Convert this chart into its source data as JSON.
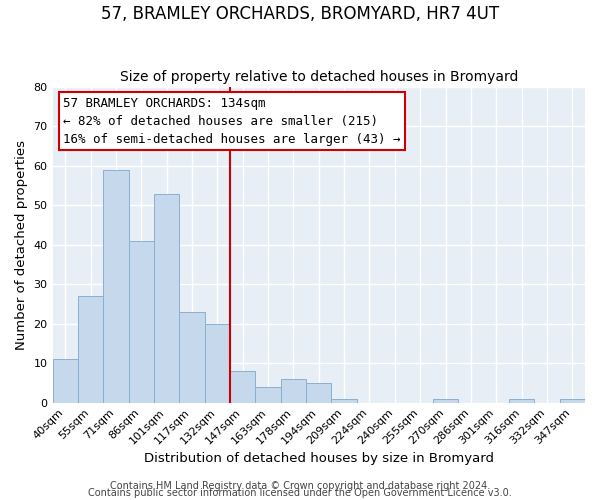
{
  "title": "57, BRAMLEY ORCHARDS, BROMYARD, HR7 4UT",
  "subtitle": "Size of property relative to detached houses in Bromyard",
  "xlabel": "Distribution of detached houses by size in Bromyard",
  "ylabel": "Number of detached properties",
  "bar_labels": [
    "40sqm",
    "55sqm",
    "71sqm",
    "86sqm",
    "101sqm",
    "117sqm",
    "132sqm",
    "147sqm",
    "163sqm",
    "178sqm",
    "194sqm",
    "209sqm",
    "224sqm",
    "240sqm",
    "255sqm",
    "270sqm",
    "286sqm",
    "301sqm",
    "316sqm",
    "332sqm",
    "347sqm"
  ],
  "bar_values": [
    11,
    27,
    59,
    41,
    53,
    23,
    20,
    8,
    4,
    6,
    5,
    1,
    0,
    0,
    0,
    1,
    0,
    0,
    1,
    0,
    1
  ],
  "bar_color": "#c5d8ec",
  "bar_edge_color": "#8ab0d0",
  "highlight_index": 6,
  "highlight_edge_color": "#cc0000",
  "ylim": [
    0,
    80
  ],
  "yticks": [
    0,
    10,
    20,
    30,
    40,
    50,
    60,
    70,
    80
  ],
  "annotation_line1": "57 BRAMLEY ORCHARDS: 134sqm",
  "annotation_line2": "← 82% of detached houses are smaller (215)",
  "annotation_line3": "16% of semi-detached houses are larger (43) →",
  "footer_line1": "Contains HM Land Registry data © Crown copyright and database right 2024.",
  "footer_line2": "Contains public sector information licensed under the Open Government Licence v3.0.",
  "bg_color": "#ffffff",
  "plot_bg_color": "#e8eef5",
  "grid_color": "#ffffff",
  "title_fontsize": 12,
  "subtitle_fontsize": 10,
  "axis_label_fontsize": 9.5,
  "tick_fontsize": 8,
  "annotation_fontsize": 9,
  "footer_fontsize": 7
}
